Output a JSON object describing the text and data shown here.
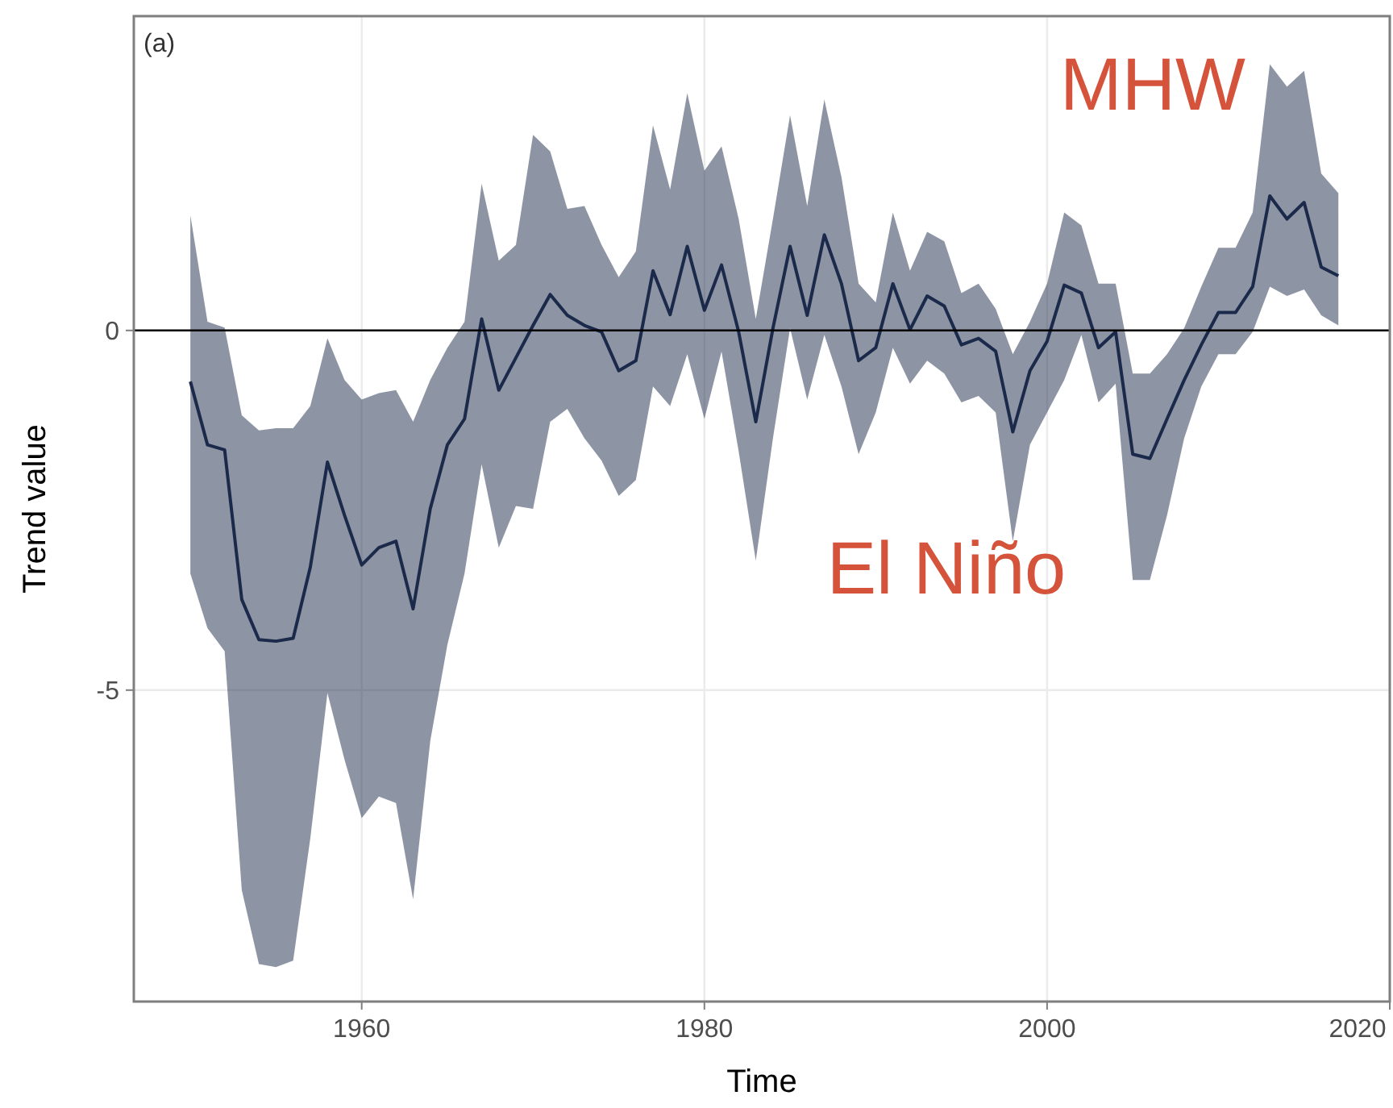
{
  "chart_data": {
    "type": "line",
    "xlabel": "Time",
    "ylabel": "Trend value",
    "annotations": [
      "(a)",
      "MHW",
      "El Niño"
    ],
    "x": [
      1950,
      1951,
      1952,
      1953,
      1954,
      1955,
      1956,
      1957,
      1958,
      1959,
      1960,
      1961,
      1962,
      1963,
      1964,
      1965,
      1966,
      1967,
      1968,
      1969,
      1970,
      1971,
      1972,
      1973,
      1974,
      1975,
      1976,
      1977,
      1978,
      1979,
      1980,
      1981,
      1982,
      1983,
      1984,
      1985,
      1986,
      1987,
      1988,
      1989,
      1990,
      1991,
      1992,
      1993,
      1994,
      1995,
      1996,
      1997,
      1998,
      1999,
      2000,
      2001,
      2002,
      2003,
      2004,
      2005,
      2006,
      2007,
      2008,
      2009,
      2010,
      2011,
      2012,
      2013,
      2014,
      2015,
      2016,
      2017
    ],
    "series": [
      {
        "color": "#1b2a4a",
        "values": [
          -0.71,
          -1.59,
          -1.66,
          -3.74,
          -4.3,
          -4.32,
          -4.28,
          -3.29,
          -1.83,
          -2.57,
          -3.26,
          -3.02,
          -2.93,
          -3.87,
          -2.48,
          -1.59,
          -1.23,
          0.16,
          -0.83,
          -0.38,
          0.07,
          0.5,
          0.21,
          0.07,
          -0.02,
          -0.56,
          -0.42,
          0.83,
          0.22,
          1.17,
          0.28,
          0.91,
          -0.02,
          -1.27,
          0.03,
          1.17,
          0.21,
          1.33,
          0.65,
          -0.42,
          -0.24,
          0.65,
          0.01,
          0.48,
          0.34,
          -0.2,
          -0.11,
          -0.29,
          -1.41,
          -0.56,
          -0.15,
          0.63,
          0.52,
          -0.24,
          -0.02,
          -1.72,
          -1.78,
          -1.23,
          -0.69,
          -0.2,
          0.25,
          0.25,
          0.61,
          1.87,
          1.55,
          1.78,
          0.88,
          0.76
        ],
        "lower": [
          -3.38,
          -4.14,
          -4.46,
          -7.78,
          -8.81,
          -8.85,
          -8.76,
          -7.06,
          -5.04,
          -5.97,
          -6.78,
          -6.48,
          -6.57,
          -7.91,
          -5.71,
          -4.37,
          -3.38,
          -1.86,
          -3.02,
          -2.44,
          -2.48,
          -1.27,
          -1.09,
          -1.5,
          -1.81,
          -2.3,
          -2.08,
          -0.78,
          -1.05,
          -0.33,
          -1.23,
          -0.29,
          -1.68,
          -3.2,
          -1.5,
          0.03,
          -0.96,
          -0.06,
          -0.78,
          -1.72,
          -1.14,
          -0.24,
          -0.74,
          -0.42,
          -0.6,
          -1.0,
          -0.91,
          -1.14,
          -2.93,
          -1.59,
          -1.14,
          -0.69,
          -0.06,
          -1.0,
          -0.74,
          -3.47,
          -3.47,
          -2.57,
          -1.5,
          -0.78,
          -0.33,
          -0.33,
          -0.02,
          0.61,
          0.48,
          0.57,
          0.21,
          0.07
        ],
        "upper": [
          1.6,
          0.12,
          0.04,
          -1.18,
          -1.39,
          -1.36,
          -1.36,
          -1.05,
          -0.11,
          -0.69,
          -0.96,
          -0.87,
          -0.83,
          -1.27,
          -0.69,
          -0.24,
          0.12,
          2.04,
          0.97,
          1.19,
          2.72,
          2.49,
          1.69,
          1.73,
          1.19,
          0.74,
          1.1,
          2.85,
          1.96,
          3.3,
          2.22,
          2.56,
          1.55,
          0.16,
          1.55,
          2.99,
          1.73,
          3.21,
          2.13,
          0.65,
          0.39,
          1.64,
          0.83,
          1.37,
          1.24,
          0.52,
          0.65,
          0.3,
          -0.33,
          0.12,
          0.65,
          1.64,
          1.46,
          0.65,
          0.65,
          -0.6,
          -0.6,
          -0.33,
          0.03,
          0.61,
          1.15,
          1.15,
          1.64,
          3.7,
          3.39,
          3.61,
          2.18,
          1.91
        ]
      }
    ],
    "xlim": [
      1946.7,
      2020
    ],
    "xticks": [
      1960,
      1980,
      2000,
      2020
    ],
    "ylim": [
      -9.33,
      4.37
    ],
    "yticks": [
      -5,
      0
    ],
    "ref_lines": [
      {
        "axis": "y",
        "value": 0,
        "color": "#000000"
      }
    ],
    "grid": true
  }
}
